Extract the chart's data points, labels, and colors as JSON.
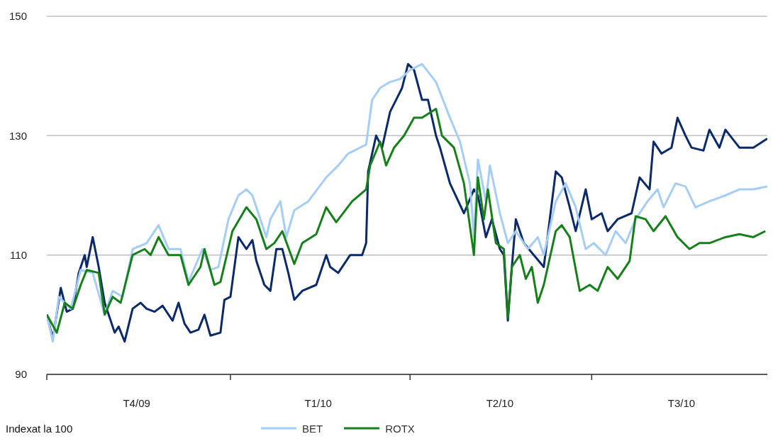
{
  "chart_data": {
    "type": "line",
    "annotations": [
      "Indexat la 100"
    ],
    "xlim": [
      "2009-10-01",
      "2010-09-27"
    ],
    "xticks": [
      {
        "value": "2009-10-01",
        "label": null
      },
      {
        "value": "2009-11-15",
        "label": "T4/09"
      },
      {
        "value": "2010-01-01",
        "label": null
      },
      {
        "value": "2010-02-14",
        "label": "T1/10"
      },
      {
        "value": "2010-04-01",
        "label": null
      },
      {
        "value": "2010-05-16",
        "label": "T2/10"
      },
      {
        "value": "2010-07-01",
        "label": null
      },
      {
        "value": "2010-08-15",
        "label": "T3/10"
      }
    ],
    "ylim": [
      90,
      150
    ],
    "yticks": [
      90,
      110,
      130,
      150
    ],
    "grid": "y",
    "legend": "bottom",
    "marker": "none",
    "line_style": "solid",
    "series": [
      {
        "color": "#0a2a6b",
        "x": [
          "2009-10-01",
          "2009-10-04",
          "2009-10-08",
          "2009-10-11",
          "2009-10-14",
          "2009-10-17",
          "2009-10-20",
          "2009-10-21",
          "2009-10-24",
          "2009-10-27",
          "2009-10-30",
          "2009-11-04",
          "2009-11-06",
          "2009-11-09",
          "2009-11-13",
          "2009-11-17",
          "2009-11-20",
          "2009-11-24",
          "2009-11-28",
          "2009-12-03",
          "2009-12-06",
          "2009-12-09",
          "2009-12-12",
          "2009-12-16",
          "2009-12-19",
          "2009-12-22",
          "2009-12-27",
          "2009-12-29",
          "2010-01-01",
          "2010-01-05",
          "2010-01-09",
          "2010-01-12",
          "2010-01-14",
          "2010-01-18",
          "2010-01-21",
          "2010-01-24",
          "2010-01-27",
          "2010-01-30",
          "2010-02-02",
          "2010-02-06",
          "2010-02-13",
          "2010-02-18",
          "2010-02-20",
          "2010-02-24",
          "2010-03-02",
          "2010-03-08",
          "2010-03-10",
          "2010-03-11",
          "2010-03-15",
          "2010-03-18",
          "2010-03-22",
          "2010-03-25",
          "2010-03-28",
          "2010-03-31",
          "2010-04-03",
          "2010-04-07",
          "2010-04-10",
          "2010-04-14",
          "2010-04-16",
          "2010-04-21",
          "2010-04-28",
          "2010-05-03",
          "2010-05-05",
          "2010-05-09",
          "2010-05-12",
          "2010-05-16",
          "2010-05-18",
          "2010-05-20",
          "2010-05-22",
          "2010-05-24",
          "2010-05-28",
          "2010-06-02",
          "2010-06-07",
          "2010-06-13",
          "2010-06-16",
          "2010-06-20",
          "2010-06-23",
          "2010-06-28",
          "2010-07-01",
          "2010-07-06",
          "2010-07-09",
          "2010-07-14",
          "2010-07-21",
          "2010-07-25",
          "2010-07-30",
          "2010-08-01",
          "2010-08-05",
          "2010-08-10",
          "2010-08-13",
          "2010-08-17",
          "2010-08-20",
          "2010-08-26",
          "2010-08-29",
          "2010-09-03",
          "2010-09-06",
          "2010-09-13",
          "2010-09-20",
          "2010-09-27"
        ],
        "values": [
          100,
          96,
          104.5,
          100.5,
          101,
          107,
          110,
          108,
          113,
          108,
          102,
          97,
          98,
          95.5,
          101,
          102,
          101,
          100.5,
          101.5,
          99,
          102,
          98.5,
          97,
          97.5,
          100,
          96.5,
          97,
          102.5,
          103,
          113,
          111,
          112.5,
          109,
          105,
          104,
          111,
          111,
          107,
          102.5,
          104,
          105,
          110,
          108,
          107,
          110,
          110,
          112,
          124,
          130,
          128,
          134,
          136,
          138,
          142,
          141,
          136,
          136,
          130,
          128,
          122,
          117,
          121,
          120,
          113,
          116,
          111,
          110,
          99,
          108,
          116,
          112,
          110,
          108,
          124,
          123,
          118,
          114,
          121,
          116,
          117,
          114,
          116,
          117,
          123,
          121,
          129,
          127,
          128,
          133,
          130,
          128,
          127.5,
          131,
          128,
          131,
          128,
          128,
          129.5
        ]
      },
      {
        "name": "BET",
        "color": "#a6cdf5",
        "x": [
          "2009-10-01",
          "2009-10-04",
          "2009-10-07",
          "2009-10-13",
          "2009-10-18",
          "2009-10-24",
          "2009-10-30",
          "2009-11-03",
          "2009-11-08",
          "2009-11-13",
          "2009-11-20",
          "2009-11-26",
          "2009-12-01",
          "2009-12-07",
          "2009-12-11",
          "2009-12-18",
          "2009-12-22",
          "2009-12-26",
          "2009-12-31",
          "2010-01-05",
          "2010-01-09",
          "2010-01-12",
          "2010-01-19",
          "2010-01-21",
          "2010-01-26",
          "2010-01-29",
          "2010-02-02",
          "2010-02-09",
          "2010-02-18",
          "2010-02-24",
          "2010-03-01",
          "2010-03-10",
          "2010-03-13",
          "2010-03-17",
          "2010-03-22",
          "2010-03-27",
          "2010-04-01",
          "2010-04-07",
          "2010-04-14",
          "2010-04-21",
          "2010-04-26",
          "2010-05-01",
          "2010-05-03",
          "2010-05-05",
          "2010-05-09",
          "2010-05-11",
          "2010-05-16",
          "2010-05-20",
          "2010-05-24",
          "2010-05-30",
          "2010-06-04",
          "2010-06-07",
          "2010-06-13",
          "2010-06-18",
          "2010-06-23",
          "2010-06-28",
          "2010-07-02",
          "2010-07-08",
          "2010-07-13",
          "2010-07-18",
          "2010-07-23",
          "2010-07-29",
          "2010-08-03",
          "2010-08-06",
          "2010-08-12",
          "2010-08-17",
          "2010-08-22",
          "2010-08-29",
          "2010-09-06",
          "2010-09-13",
          "2010-09-20",
          "2010-09-27"
        ],
        "values": [
          100,
          95.5,
          103,
          101,
          107.5,
          107,
          100,
          104,
          103,
          111,
          112,
          115,
          111,
          111,
          105.5,
          111,
          107.5,
          108,
          116,
          120,
          121,
          120,
          113,
          116,
          119,
          113,
          117.5,
          119,
          123,
          125,
          127,
          128.5,
          136,
          138,
          139,
          139.5,
          141,
          142,
          139,
          133,
          129,
          122,
          113,
          126,
          119,
          125,
          117,
          112,
          114,
          111,
          113,
          110,
          119,
          122,
          118,
          111,
          112,
          110,
          114,
          112,
          116,
          119,
          121,
          118,
          122,
          121.5,
          118,
          119,
          120,
          121,
          121,
          121.5
        ]
      },
      {
        "name": "ROTX",
        "color": "#15801a",
        "x": [
          "2009-10-01",
          "2009-10-06",
          "2009-10-10",
          "2009-10-14",
          "2009-10-18",
          "2009-10-21",
          "2009-10-27",
          "2009-10-30",
          "2009-11-03",
          "2009-11-07",
          "2009-11-13",
          "2009-11-19",
          "2009-11-22",
          "2009-11-26",
          "2009-12-01",
          "2009-12-07",
          "2009-12-11",
          "2009-12-17",
          "2009-12-19",
          "2009-12-24",
          "2009-12-27",
          "2010-01-02",
          "2010-01-09",
          "2010-01-14",
          "2010-01-19",
          "2010-01-23",
          "2010-01-27",
          "2010-02-02",
          "2010-02-06",
          "2010-02-13",
          "2010-02-18",
          "2010-02-23",
          "2010-03-03",
          "2010-03-10",
          "2010-03-12",
          "2010-03-17",
          "2010-03-20",
          "2010-03-24",
          "2010-03-29",
          "2010-04-03",
          "2010-04-07",
          "2010-04-14",
          "2010-04-17",
          "2010-04-23",
          "2010-04-28",
          "2010-05-03",
          "2010-05-05",
          "2010-05-08",
          "2010-05-10",
          "2010-05-14",
          "2010-05-18",
          "2010-05-20",
          "2010-05-22",
          "2010-05-26",
          "2010-05-29",
          "2010-06-01",
          "2010-06-04",
          "2010-06-07",
          "2010-06-13",
          "2010-06-16",
          "2010-06-20",
          "2010-06-25",
          "2010-06-30",
          "2010-07-04",
          "2010-07-09",
          "2010-07-14",
          "2010-07-20",
          "2010-07-23",
          "2010-07-28",
          "2010-08-01",
          "2010-08-07",
          "2010-08-13",
          "2010-08-19",
          "2010-08-24",
          "2010-08-29",
          "2010-09-06",
          "2010-09-13",
          "2010-09-20",
          "2010-09-26"
        ],
        "values": [
          100,
          97,
          102,
          101,
          105,
          107.5,
          107,
          100,
          103,
          102,
          110,
          111,
          110,
          113,
          110,
          110,
          105,
          108,
          111,
          105,
          105.5,
          114,
          118,
          116,
          111,
          112,
          114,
          108.5,
          112,
          113.5,
          118,
          115.5,
          119,
          121,
          125,
          129,
          125,
          128,
          130,
          133,
          133,
          134.5,
          130,
          128,
          122,
          110,
          123,
          116,
          121,
          112,
          111,
          99.5,
          108,
          110,
          106,
          108,
          102,
          105,
          114,
          115,
          113,
          104,
          105,
          104,
          108,
          106,
          109,
          116.5,
          116,
          114,
          116.5,
          113,
          111,
          112,
          112,
          113,
          113.5,
          113,
          114
        ]
      }
    ]
  }
}
